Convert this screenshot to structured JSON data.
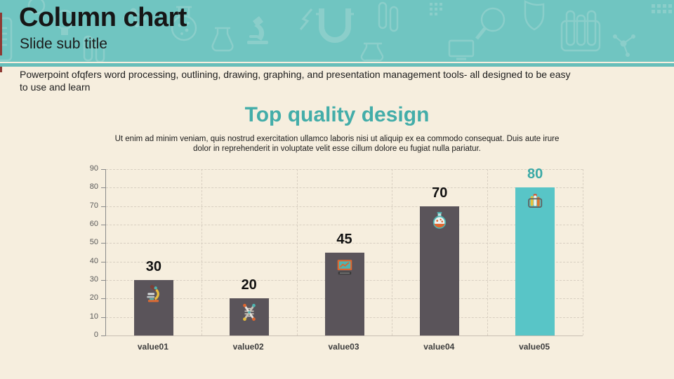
{
  "slide": {
    "title": "Column chart",
    "subtitle": "Slide sub title",
    "body_text": "Powerpoint ofqfers word processing, outlining, drawing, graphing, and presentation management tools- all designed to be easy to use and learn"
  },
  "content": {
    "heading": "Top quality design",
    "description": "Ut enim ad minim veniam, quis nostrud exercitation ullamco laboris nisi ut aliquip ex ea commodo consequat. Duis aute irure dolor in reprehenderit in voluptate velit esse cillum dolore eu fugiat nulla pariatur."
  },
  "chart_data": {
    "type": "bar",
    "title": "Top quality design",
    "categories": [
      "value01",
      "value02",
      "value03",
      "value04",
      "value05"
    ],
    "values": [
      30,
      20,
      45,
      70,
      80
    ],
    "data_labels": [
      "30",
      "20",
      "45",
      "70",
      "80"
    ],
    "bar_icons": [
      "microscope-icon",
      "dna-icon",
      "monitor-icon",
      "flask-icon",
      "test-tubes-icon"
    ],
    "y_ticks": [
      0,
      10,
      20,
      30,
      40,
      50,
      60,
      70,
      80,
      90
    ],
    "ylim": [
      0,
      90
    ],
    "grid": true,
    "legend": false,
    "highlight_index": 4
  },
  "colors": {
    "header_teal": "#70c5c1",
    "pattern_teal": "#8fd0cc",
    "divider_teal": "#67beba",
    "background_cream": "#f6eede",
    "accent_red": "#8e3a33",
    "heading_teal": "#43ada9",
    "bar_gray": "#5a545a",
    "bar_highlight_teal": "#58c5c7",
    "value_label_black": "#111111",
    "value_label_teal": "#3aa9a6",
    "axis_gray": "#8a8a8a",
    "tick_label_gray": "#595959",
    "gridline": "#d8cfc1"
  }
}
